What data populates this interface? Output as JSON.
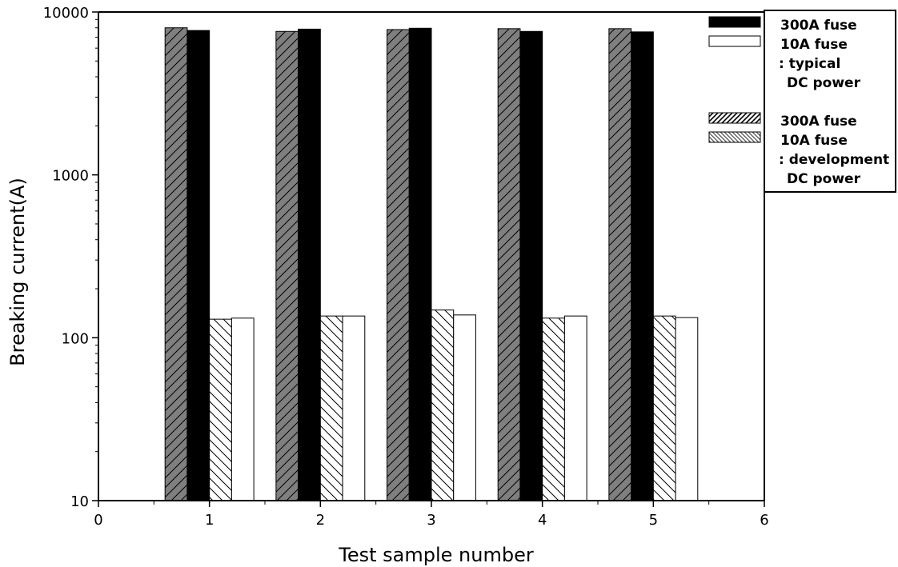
{
  "chart_data": {
    "type": "bar",
    "xlabel": "Test sample number",
    "ylabel": "Breaking current(A)",
    "yscale": "log",
    "ylim": [
      10,
      10000
    ],
    "xlim": [
      0,
      6
    ],
    "x_ticks": [
      "0",
      "1",
      "2",
      "3",
      "4",
      "5",
      "6"
    ],
    "y_ticks": [
      "10",
      "100",
      "1000",
      "10000"
    ],
    "categories": [
      1,
      2,
      3,
      4,
      5
    ],
    "series": [
      {
        "name": "300A fuse (development DC power)",
        "fill": "dense-hatch-gray",
        "values": [
          8000,
          7600,
          7800,
          7900,
          7900
        ]
      },
      {
        "name": "300A fuse (typical DC power)",
        "fill": "solid-black",
        "values": [
          7700,
          7850,
          7950,
          7600,
          7550
        ]
      },
      {
        "name": "10A fuse (development DC power)",
        "fill": "sparse-hatch-white",
        "values": [
          130,
          136,
          148,
          132,
          136
        ]
      },
      {
        "name": "10A fuse (typical DC power)",
        "fill": "solid-white",
        "values": [
          132,
          136,
          138,
          136,
          133
        ]
      }
    ],
    "grid": false,
    "legend_position": "top-right"
  },
  "legend": {
    "groups": [
      {
        "entries": [
          {
            "label": "300A fuse",
            "fill": "solid-black"
          },
          {
            "label": "10A fuse",
            "fill": "solid-white"
          }
        ],
        "caption_lines": [
          ": typical",
          "DC power"
        ]
      },
      {
        "entries": [
          {
            "label": "300A fuse",
            "fill": "dense-hatch-black"
          },
          {
            "label": "10A fuse",
            "fill": "sparse-hatch-gray"
          }
        ],
        "caption_lines": [
          ": development",
          "DC power"
        ]
      }
    ]
  },
  "colors": {
    "axis": "#000000",
    "dark_bar": "#000000",
    "hatch_bg_gray": "#7f7f7f",
    "light_bar": "#ffffff"
  }
}
